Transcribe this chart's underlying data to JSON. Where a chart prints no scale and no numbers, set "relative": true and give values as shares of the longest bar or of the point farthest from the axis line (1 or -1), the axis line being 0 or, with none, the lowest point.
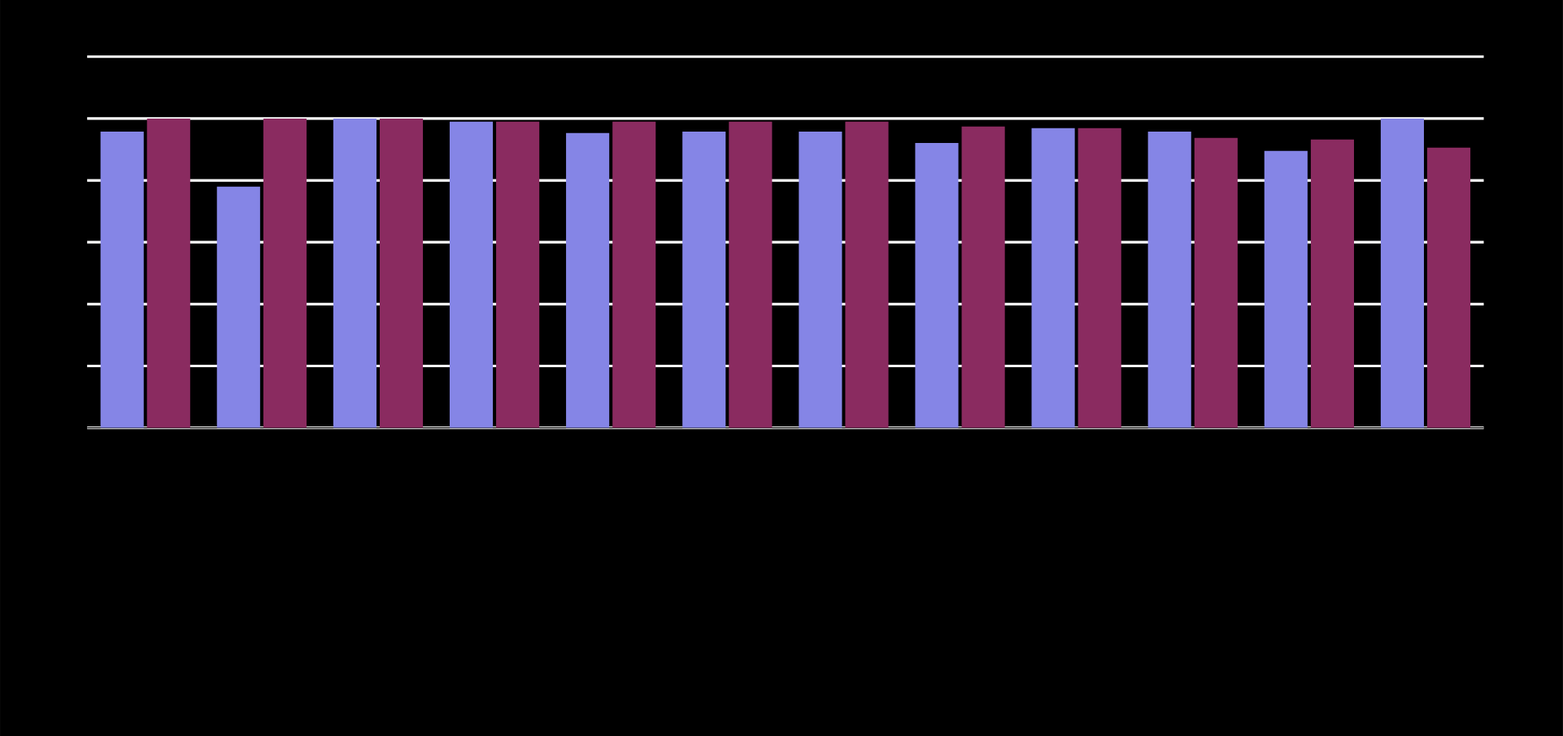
{
  "chart_data": {
    "type": "bar",
    "relative": true,
    "grid": "y",
    "categories": [
      null,
      null,
      null,
      null,
      null,
      null,
      null,
      null,
      null,
      null,
      null,
      null
    ],
    "series": [
      {
        "color": "#8585e6",
        "values": [
          0.958,
          0.78,
          1,
          0.99,
          0.953,
          0.958,
          0.958,
          0.921,
          0.969,
          0.958,
          0.895,
          1
        ]
      },
      {
        "color": "#8a2b60",
        "values": [
          1,
          1,
          1,
          0.99,
          0.99,
          0.99,
          0.99,
          0.974,
          0.969,
          0.937,
          0.932,
          0.906
        ]
      }
    ]
  }
}
